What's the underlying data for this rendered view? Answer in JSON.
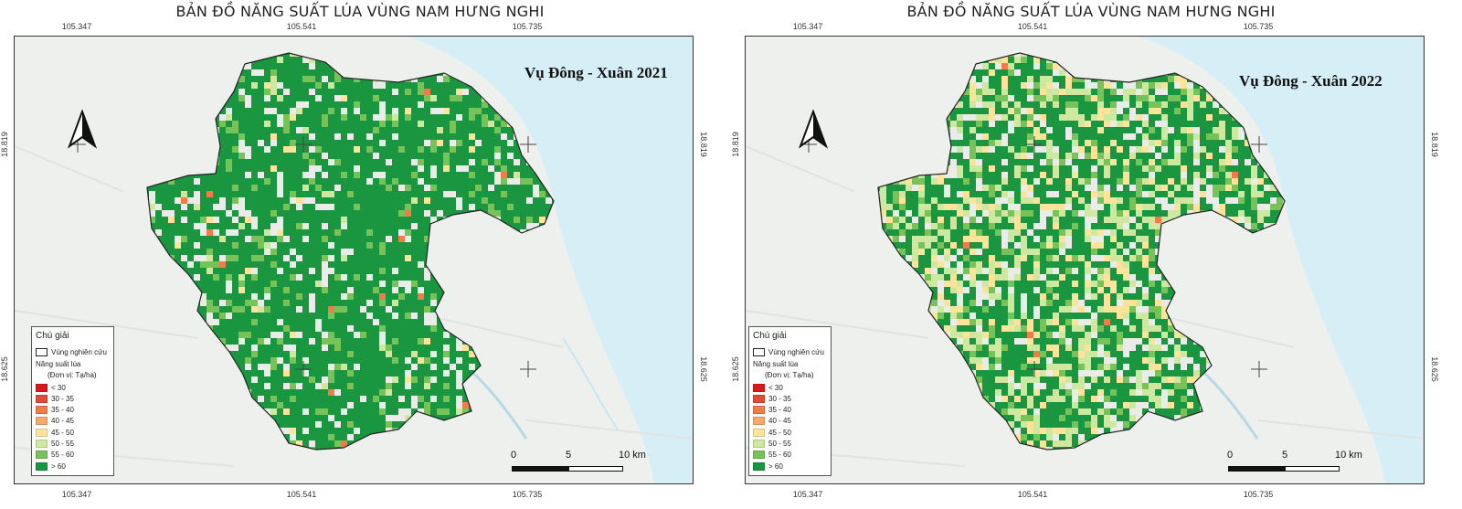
{
  "maps": [
    {
      "title": "BẢN ĐỒ NĂNG SUẤT LÚA VÙNG NAM HƯNG NGHI",
      "season": "Vụ Đông - Xuân 2021",
      "lon_ticks": [
        "105.347",
        "105.541",
        "105.735"
      ],
      "lat_ticks": [
        "18.819",
        "18.625"
      ],
      "dominant_class": "> 60",
      "yellow_share": 0.04
    },
    {
      "title": "BẢN ĐỒ NĂNG SUẤT LÚA VÙNG NAM HƯNG NGHI",
      "season": "Vụ Đông - Xuân 2022",
      "lon_ticks": [
        "105.347",
        "105.541",
        "105.735"
      ],
      "lat_ticks": [
        "18.819",
        "18.625"
      ],
      "dominant_class": "> 60",
      "yellow_share": 0.28
    }
  ],
  "legend": {
    "title": "Chú giải",
    "study_area": "Vùng nghiên cứu",
    "yield_label": "Năng suất lúa",
    "unit": "(Đơn vị: Tạ/ha)",
    "classes": [
      {
        "label": "<   30",
        "color": "#d7191c"
      },
      {
        "label": "30 - 35",
        "color": "#e34a33"
      },
      {
        "label": "35 - 40",
        "color": "#f07c4a"
      },
      {
        "label": "40 - 45",
        "color": "#f9a86a"
      },
      {
        "label": "45 - 50",
        "color": "#fde49a"
      },
      {
        "label": "50 - 55",
        "color": "#cfe8a0"
      },
      {
        "label": "55 - 60",
        "color": "#77c35a"
      },
      {
        "label": "> 60",
        "color": "#1a9641"
      }
    ]
  },
  "scale": {
    "zero": "0",
    "mid": "5",
    "end": "10 km"
  },
  "colors": {
    "sea": "#d6eef5",
    "land": "#eef0ee",
    "boundary": "#222222"
  }
}
